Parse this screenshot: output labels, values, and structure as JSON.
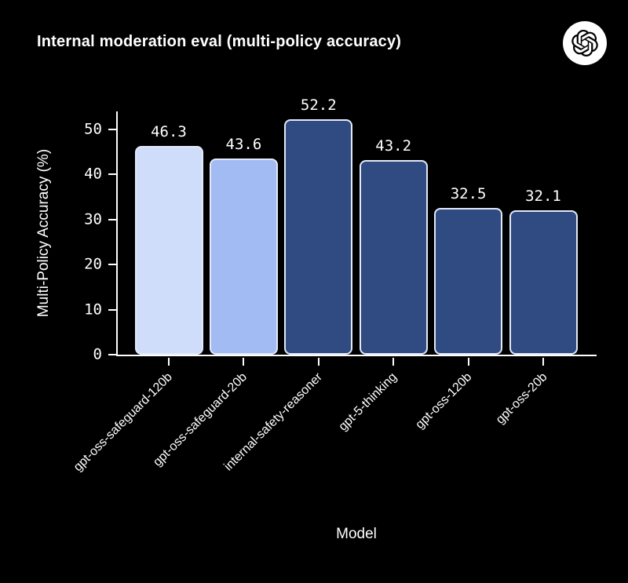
{
  "header": {
    "title": "Internal moderation eval (multi-policy accuracy)",
    "logo_icon": "openai-logo"
  },
  "chart_data": {
    "type": "bar",
    "title": "Internal moderation eval (multi-policy accuracy)",
    "xlabel": "Model",
    "ylabel": "Multi-Policy Accuracy (%)",
    "categories": [
      "gpt-oss-safeguard-120b",
      "gpt-oss-safeguard-20b",
      "internal-safety-reasoner",
      "gpt-5-thinking",
      "gpt-oss-120b",
      "gpt-oss-20b"
    ],
    "values": [
      46.3,
      43.6,
      52.2,
      43.2,
      32.5,
      32.1
    ],
    "value_labels": [
      "46.3",
      "43.6",
      "52.2",
      "43.2",
      "32.5",
      "32.1"
    ],
    "bar_colors": [
      "#cfdcfa",
      "#a2bbf2",
      "#2f4b81",
      "#2f4b81",
      "#2f4b81",
      "#2f4b81"
    ],
    "bar_edge_color": "#e3e9f7",
    "yticks": [
      0,
      10,
      20,
      30,
      40,
      50
    ],
    "ylim": [
      0,
      54
    ],
    "grid": false,
    "legend": null,
    "background_color": "#000000",
    "text_color": "#ffffff"
  }
}
